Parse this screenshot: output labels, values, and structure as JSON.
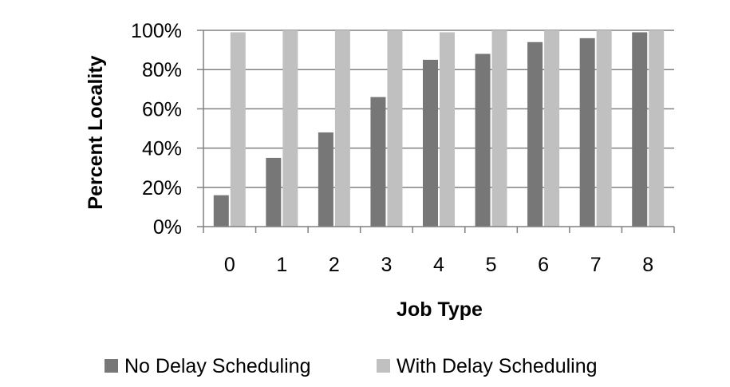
{
  "chart_data": {
    "type": "bar",
    "categories": [
      "0",
      "1",
      "2",
      "3",
      "4",
      "5",
      "6",
      "7",
      "8"
    ],
    "series": [
      {
        "name": "No Delay Scheduling",
        "color": "#777777",
        "values": [
          16,
          35,
          48,
          66,
          85,
          88,
          94,
          96,
          99
        ]
      },
      {
        "name": "With Delay Scheduling",
        "color": "#c0c0c0",
        "values": [
          99,
          100,
          100,
          100,
          99,
          100,
          100,
          100,
          100
        ]
      }
    ],
    "xlabel": "Job Type",
    "ylabel": "Percent Locality",
    "ylim": [
      0,
      100
    ],
    "yticks": [
      0,
      20,
      40,
      60,
      80,
      100
    ],
    "ytick_labels": [
      "0%",
      "20%",
      "40%",
      "60%",
      "80%",
      "100%"
    ],
    "grid": true,
    "gridline_color": "#808080",
    "legend_position": "bottom"
  }
}
